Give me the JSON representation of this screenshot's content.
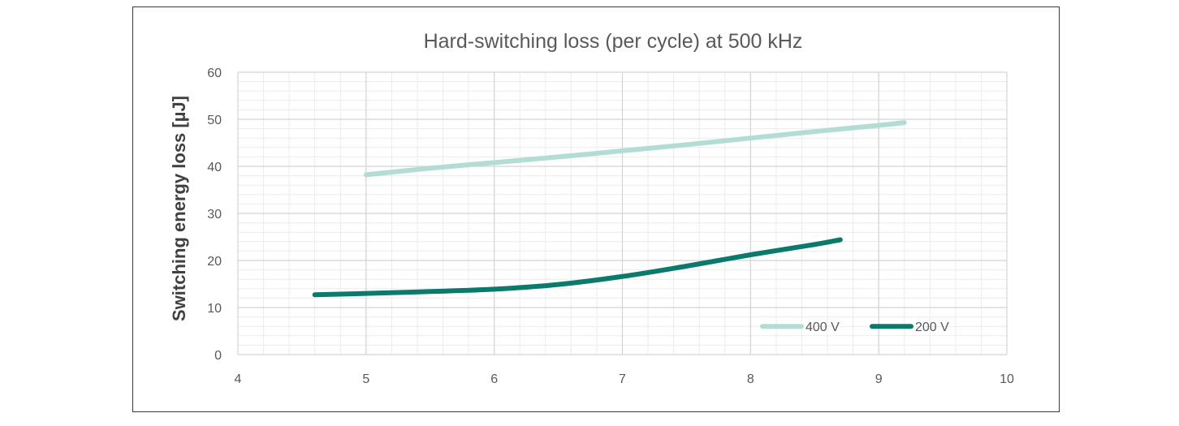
{
  "chart_data": {
    "type": "line",
    "title": "Hard-switching loss (per cycle) at 500 kHz",
    "xlabel": "",
    "ylabel": "Switching energy loss [µJ]",
    "xlim": [
      4,
      10
    ],
    "ylim": [
      0,
      60
    ],
    "x_ticks": [
      4,
      5,
      6,
      7,
      8,
      9,
      10
    ],
    "y_ticks": [
      0,
      10,
      20,
      30,
      40,
      50,
      60
    ],
    "x_minor_step": 0.2,
    "y_minor_step": 2,
    "grid": true,
    "legend_position": "bottom-right",
    "series": [
      {
        "name": "400 V",
        "color": "#b3ddd4",
        "x": [
          5.0,
          5.5,
          6.0,
          6.5,
          7.0,
          7.5,
          8.0,
          8.5,
          9.0,
          9.2
        ],
        "y": [
          38.2,
          39.6,
          40.8,
          42.0,
          43.3,
          44.6,
          46.0,
          47.4,
          48.7,
          49.3
        ]
      },
      {
        "name": "200 V",
        "color": "#0b7a6c",
        "x": [
          4.6,
          5.0,
          5.5,
          6.0,
          6.5,
          7.0,
          7.5,
          8.0,
          8.5,
          8.7
        ],
        "y": [
          12.7,
          13.0,
          13.4,
          13.9,
          14.9,
          16.6,
          18.8,
          21.2,
          23.4,
          24.4
        ]
      }
    ]
  }
}
